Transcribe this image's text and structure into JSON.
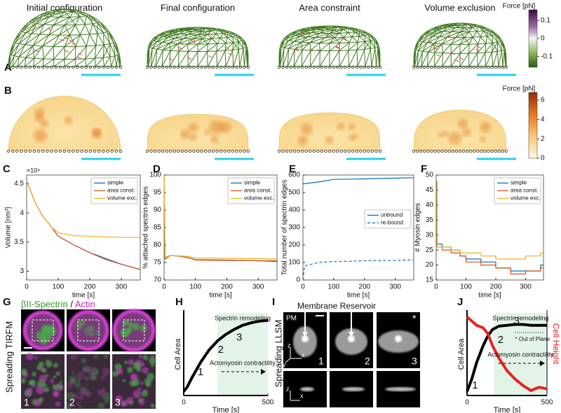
{
  "panel_labels": [
    "A",
    "B",
    "C",
    "D",
    "E",
    "F",
    "G",
    "H",
    "I",
    "J"
  ],
  "row_a": {
    "titles": [
      "Initial configuration",
      "Final configuration",
      "Area constraint",
      "Volume exclusion"
    ],
    "colorbar": {
      "title": "Force [pN]",
      "ticks": [
        0.1,
        0,
        -0.1
      ],
      "lim": [
        -0.16,
        0.16
      ]
    }
  },
  "row_b": {
    "colorbar": {
      "title": "Force [pN]",
      "ticks": [
        6,
        4,
        2,
        0
      ],
      "lim": [
        0,
        6.8
      ]
    }
  },
  "panel_g": {
    "stain_1": "βII-Spectrin",
    "separator": "/",
    "stain_2": "Actin",
    "side_label": "Spreading TIRFM",
    "image_labels": [
      "1",
      "2",
      "3"
    ]
  },
  "panel_i": {
    "title": "Membrane Reservoir",
    "side_label": "Spreading LLSM",
    "pm_label": "PM",
    "star": "*",
    "axis_labels": [
      "z",
      "y",
      "x"
    ],
    "strip_axis_labels": [
      "z",
      "x"
    ],
    "image_labels": [
      "1",
      "2",
      "3"
    ]
  },
  "chart_data": [
    {
      "type": "line",
      "ylabel": "Volume [nm³]",
      "y_multiplier": "×10⁹",
      "xlabel": "time [s]",
      "xlim": [
        0,
        360
      ],
      "xticks": [
        0,
        100,
        200,
        300
      ],
      "ylim": [
        2.85,
        4.65
      ],
      "yticks": [
        3,
        3.5,
        4,
        4.5
      ],
      "legend": "upper right",
      "x": [
        0,
        25,
        50,
        80,
        100,
        150,
        200,
        250,
        300,
        360
      ],
      "series": [
        {
          "name": "simple",
          "color": "#0072bd",
          "values": [
            4.55,
            4.2,
            3.95,
            3.75,
            3.6,
            3.45,
            3.32,
            3.22,
            3.12,
            3.03
          ]
        },
        {
          "name": "area const.",
          "color": "#d95319",
          "values": [
            4.55,
            4.2,
            3.95,
            3.75,
            3.6,
            3.45,
            3.32,
            3.2,
            3.12,
            3.03
          ]
        },
        {
          "name": "volume exc.",
          "color": "#edb120",
          "values": [
            4.55,
            4.2,
            3.95,
            3.75,
            3.66,
            3.61,
            3.6,
            3.59,
            3.58,
            3.58
          ]
        }
      ]
    },
    {
      "type": "line",
      "ylabel": "% attached spectrin edges",
      "xlabel": "time [s]",
      "xlim": [
        0,
        360
      ],
      "xticks": [
        0,
        100,
        200,
        300
      ],
      "ylim": [
        70,
        100
      ],
      "yticks": [
        70,
        75,
        80,
        85,
        90,
        95,
        100
      ],
      "legend": "upper right",
      "x": [
        0,
        3,
        20,
        50,
        80,
        100,
        200,
        300,
        360
      ],
      "series": [
        {
          "name": "simple",
          "color": "#0072bd",
          "values": [
            100,
            76,
            77,
            76.8,
            76.3,
            75.8,
            75.7,
            75.5,
            75.3
          ]
        },
        {
          "name": "area const.",
          "color": "#d95319",
          "values": [
            100,
            76,
            77,
            76.8,
            76.3,
            75.7,
            75.6,
            75.5,
            75.5
          ]
        },
        {
          "name": "volume exc.",
          "color": "#edb120",
          "values": [
            100,
            76.5,
            77,
            76.9,
            76.7,
            76.3,
            76.2,
            76.1,
            76
          ]
        }
      ]
    },
    {
      "type": "line",
      "ylabel": "Total number of spectrin edges",
      "xlabel": "time [s]",
      "xlim": [
        0,
        360
      ],
      "xticks": [
        0,
        100,
        200,
        300
      ],
      "ylim": [
        0,
        600
      ],
      "yticks": [
        0,
        100,
        200,
        300,
        400,
        500,
        600
      ],
      "legend": "right",
      "x": [
        0,
        5,
        50,
        100,
        200,
        300,
        360
      ],
      "series": [
        {
          "name": "unbound",
          "color": "#0072bd",
          "values": [
            550,
            550,
            560,
            575,
            578,
            582,
            585
          ]
        },
        {
          "name": "re-bound",
          "color": "#0072bd",
          "dash": true,
          "values": [
            0,
            80,
            100,
            105,
            110,
            112,
            115
          ]
        }
      ]
    },
    {
      "type": "line",
      "ylabel": "# Myosin edges",
      "xlabel": "time [s]",
      "step": true,
      "xlim": [
        0,
        360
      ],
      "xticks": [
        0,
        100,
        200,
        300
      ],
      "ylim": [
        15,
        50
      ],
      "yticks": [
        15,
        20,
        25,
        30,
        35,
        40,
        45,
        50
      ],
      "legend": "upper right",
      "x": [
        0,
        3,
        20,
        50,
        80,
        100,
        150,
        200,
        250,
        300,
        350,
        360
      ],
      "series": [
        {
          "name": "simple",
          "color": "#0072bd",
          "values": [
            48,
            27,
            26,
            25,
            23,
            22,
            21,
            19,
            18,
            18,
            20,
            20
          ]
        },
        {
          "name": "area const.",
          "color": "#d95319",
          "values": [
            48,
            26,
            25,
            24,
            23,
            21,
            20,
            19,
            17,
            18,
            19,
            19
          ]
        },
        {
          "name": "volume exc.",
          "color": "#edb120",
          "values": [
            48,
            26,
            26,
            25,
            24,
            24,
            23,
            22,
            22,
            23,
            24,
            24
          ]
        }
      ]
    },
    {
      "type": "line",
      "ylabel": "Cell Area",
      "xlabel": "Time [s]",
      "xlim": [
        0,
        500
      ],
      "xticks": [
        0,
        500
      ],
      "ylim": [
        0,
        1
      ],
      "shade": [
        200,
        500
      ],
      "annotations": [
        "Spectrin remodeling",
        "Actomyosin contractility"
      ],
      "stage_labels": [
        "1",
        "2",
        "3"
      ],
      "x": [
        0,
        20,
        50,
        100,
        150,
        200,
        250,
        300,
        350,
        400,
        450,
        500
      ],
      "series": [
        {
          "color": "#000000",
          "values": [
            0.05,
            0.1,
            0.22,
            0.4,
            0.55,
            0.66,
            0.74,
            0.8,
            0.85,
            0.88,
            0.9,
            0.91
          ]
        }
      ]
    },
    {
      "type": "line",
      "ylabel": "Cell Area",
      "y2label": "Cell Height",
      "xlabel": "Time [s]",
      "xlim": [
        0,
        500
      ],
      "xticks": [
        0,
        500
      ],
      "ylim": [
        0,
        1
      ],
      "y2lim": [
        0,
        1
      ],
      "shade": [
        170,
        500
      ],
      "annotations": [
        "Spectrin remodeling",
        "* Out of Plane",
        "Actomyosin contractility"
      ],
      "stage_labels": [
        "1",
        "2",
        "3"
      ],
      "x": [
        0,
        30,
        60,
        100,
        130,
        160,
        200,
        250,
        300,
        350,
        400,
        450,
        500
      ],
      "series": [
        {
          "color": "#000000",
          "values": [
            0.05,
            0.2,
            0.4,
            0.6,
            0.72,
            0.8,
            0.84,
            0.85,
            0.86,
            0.86,
            0.85,
            0.85,
            0.85
          ]
        },
        {
          "color": "#e8231e",
          "axis": "y2",
          "values": [
            0.95,
            0.9,
            0.85,
            0.82,
            0.75,
            0.6,
            0.45,
            0.3,
            0.2,
            0.12,
            0.06,
            0.1,
            0.08
          ]
        }
      ]
    }
  ]
}
